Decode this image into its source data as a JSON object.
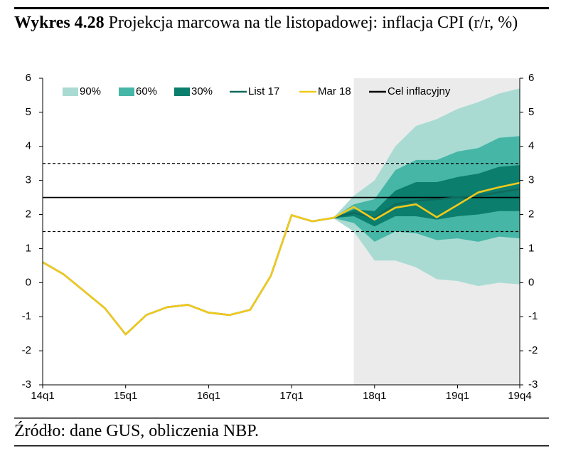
{
  "chart_data": {
    "type": "fan",
    "title_label": "Wykres 4.28",
    "title": "Projekcja marcowa na tle listopadowej: inflacja CPI (r/r, %)",
    "source": "Źródło: dane GUS, obliczenia NBP.",
    "categories": [
      "14q1",
      null,
      null,
      null,
      "15q1",
      null,
      null,
      null,
      "16q1",
      null,
      null,
      null,
      "17q1",
      null,
      null,
      null,
      "18q1",
      null,
      null,
      null,
      "19q1",
      null,
      null,
      "19q4"
    ],
    "projection_start": 15,
    "projection_shade": "#ebebeb",
    "ylim": [
      -3,
      6
    ],
    "yticks": [
      -3,
      -2,
      -1,
      0,
      1,
      2,
      3,
      4,
      5,
      6
    ],
    "bands": [
      {
        "name": "90%",
        "color": "#a9dbd3",
        "upper": [
          null,
          null,
          null,
          null,
          null,
          null,
          null,
          null,
          null,
          null,
          null,
          null,
          null,
          null,
          1.9,
          2.55,
          3.0,
          4.0,
          4.6,
          4.8,
          5.1,
          5.3,
          5.55,
          5.7
        ],
        "lower": [
          null,
          null,
          null,
          null,
          null,
          null,
          null,
          null,
          null,
          null,
          null,
          null,
          null,
          null,
          1.9,
          1.5,
          0.65,
          0.65,
          0.45,
          0.1,
          0.05,
          -0.1,
          0.0,
          -0.05
        ]
      },
      {
        "name": "60%",
        "color": "#46b6a6",
        "upper": [
          null,
          null,
          null,
          null,
          null,
          null,
          null,
          null,
          null,
          null,
          null,
          null,
          null,
          null,
          1.9,
          2.3,
          2.45,
          3.3,
          3.6,
          3.6,
          3.85,
          3.95,
          4.25,
          4.3
        ],
        "lower": [
          null,
          null,
          null,
          null,
          null,
          null,
          null,
          null,
          null,
          null,
          null,
          null,
          null,
          null,
          1.9,
          1.75,
          1.2,
          1.5,
          1.45,
          1.25,
          1.3,
          1.2,
          1.35,
          1.3
        ]
      },
      {
        "name": "30%",
        "color": "#0b7e6e",
        "upper": [
          null,
          null,
          null,
          null,
          null,
          null,
          null,
          null,
          null,
          null,
          null,
          null,
          null,
          null,
          1.9,
          2.15,
          2.1,
          2.7,
          2.95,
          2.95,
          3.1,
          3.2,
          3.4,
          3.45
        ],
        "lower": [
          null,
          null,
          null,
          null,
          null,
          null,
          null,
          null,
          null,
          null,
          null,
          null,
          null,
          null,
          1.9,
          1.95,
          1.65,
          1.95,
          1.95,
          1.85,
          1.95,
          2.0,
          2.1,
          2.1
        ]
      }
    ],
    "series": [
      {
        "name": "List 17",
        "color": "#0f6a5d",
        "values": [
          0.6,
          0.25,
          -0.25,
          -0.75,
          -1.52,
          -0.95,
          -0.72,
          -0.65,
          -0.88,
          -0.95,
          -0.8,
          0.2,
          1.98,
          1.8,
          1.9,
          2.05,
          1.9,
          2.3,
          2.4,
          2.45,
          2.5,
          2.55,
          2.65,
          2.75
        ]
      },
      {
        "name": "Mar 18",
        "color": "#f2c91b",
        "values": [
          0.6,
          0.25,
          -0.25,
          -0.75,
          -1.52,
          -0.95,
          -0.72,
          -0.65,
          -0.88,
          -0.95,
          -0.8,
          0.2,
          1.98,
          1.8,
          1.9,
          2.22,
          1.85,
          2.2,
          2.3,
          1.92,
          2.28,
          2.65,
          2.8,
          2.93
        ]
      }
    ],
    "target": {
      "name": "Cel inflacyjny",
      "value": 2.5,
      "color": "#000000"
    },
    "tolerance": [
      1.5,
      3.5
    ]
  }
}
